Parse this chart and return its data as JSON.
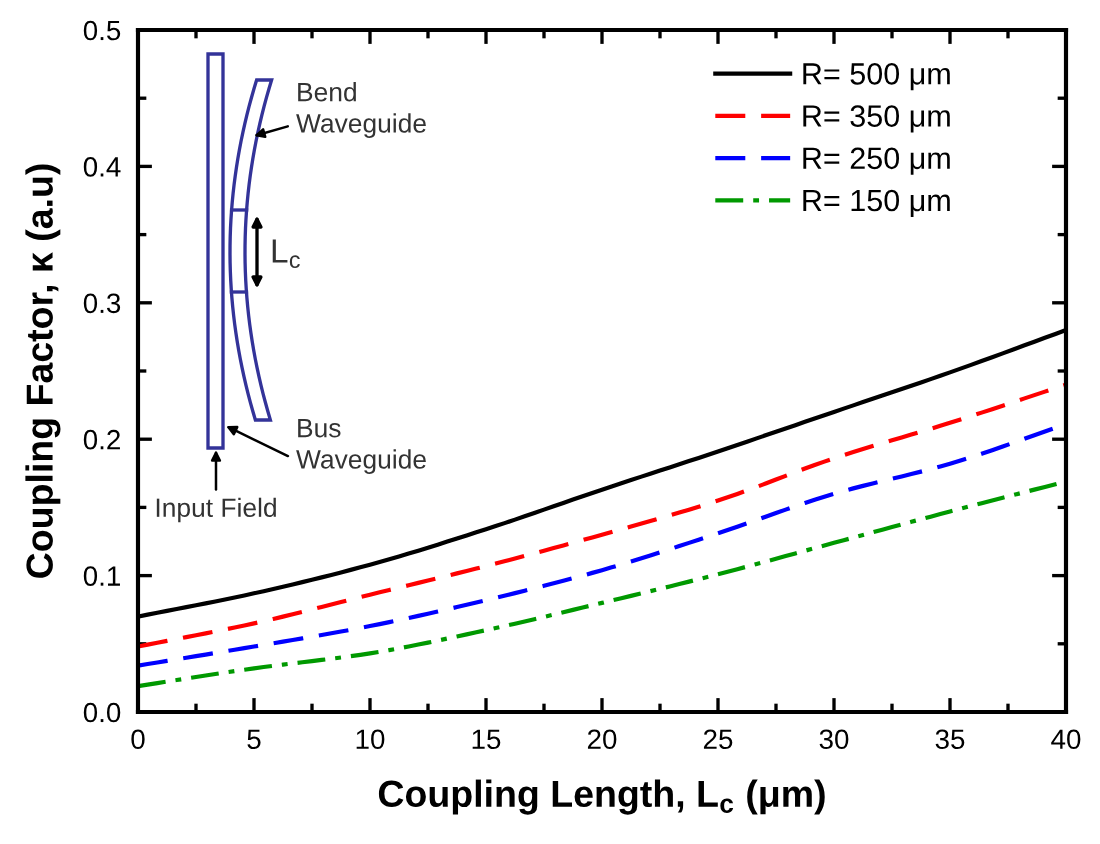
{
  "chart_data": {
    "type": "line",
    "xlabel": "Coupling Length, L$_{c}$ (μm)",
    "ylabel": "Coupling Factor, κ (a.u)",
    "x": [
      0,
      5,
      10,
      15,
      20,
      25,
      30,
      35,
      40
    ],
    "series": [
      {
        "name": "R= 500 μm",
        "color": "#000000",
        "line_style": "solid",
        "values": [
          0.07,
          0.087,
          0.108,
          0.134,
          0.163,
          0.191,
          0.22,
          0.249,
          0.28
        ]
      },
      {
        "name": "R= 350 μm",
        "color": "#ff0000",
        "line_style": "dashed",
        "values": [
          0.048,
          0.065,
          0.086,
          0.107,
          0.13,
          0.155,
          0.186,
          0.212,
          0.24
        ]
      },
      {
        "name": "R= 250 μm",
        "color": "#0000ff",
        "line_style": "dashed",
        "values": [
          0.034,
          0.048,
          0.063,
          0.082,
          0.104,
          0.131,
          0.16,
          0.182,
          0.211
        ]
      },
      {
        "name": "R= 150 μm",
        "color": "#009900",
        "line_style": "dashdot",
        "values": [
          0.019,
          0.032,
          0.043,
          0.06,
          0.08,
          0.101,
          0.124,
          0.147,
          0.169
        ]
      }
    ],
    "xlim": [
      0,
      40
    ],
    "ylim": [
      0,
      0.5
    ],
    "xticks": [
      0,
      5,
      10,
      15,
      20,
      25,
      30,
      35,
      40
    ],
    "yticks": [
      {
        "value": 0,
        "label": "0.0"
      },
      {
        "value": 0.1,
        "label": "0.1"
      },
      {
        "value": 0.2,
        "label": "0.2"
      },
      {
        "value": 0.3,
        "label": "0.3"
      },
      {
        "value": 0.4,
        "label": "0.4"
      },
      {
        "value": 0.5,
        "label": "0.5"
      }
    ],
    "legend": "top right",
    "marker": "none",
    "annotations": [
      "Bend\nWaveguide",
      "L$_{c}$",
      "Bus\nWaveguide",
      "Input Field"
    ]
  }
}
